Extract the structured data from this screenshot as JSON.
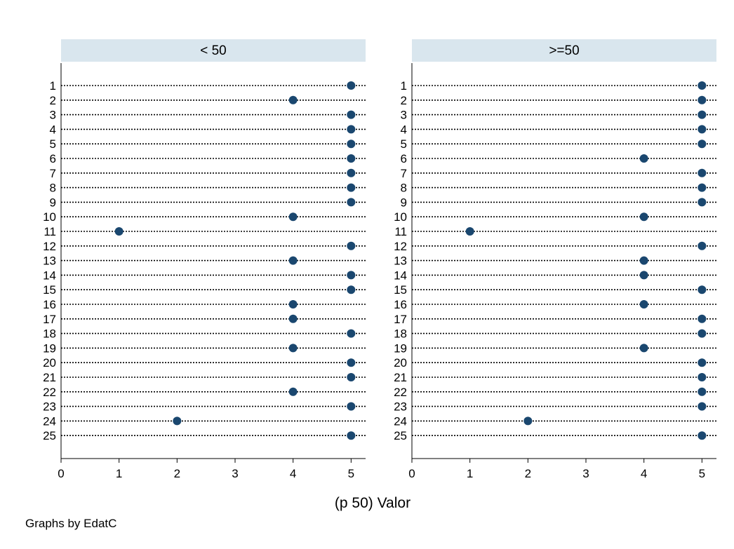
{
  "chart_data": {
    "type": "scatter",
    "subtype": "dot-plot",
    "xlabel": "(p 50) Valor",
    "note": "Graphs by EdatC",
    "xlim": [
      0,
      5.25
    ],
    "xticks": [
      0,
      1,
      2,
      3,
      4,
      5
    ],
    "grid": false,
    "marker_color": "#1a476f",
    "strip_color": "#d9e6ee",
    "categories": [
      "1",
      "2",
      "3",
      "4",
      "5",
      "6",
      "7",
      "8",
      "9",
      "10",
      "11",
      "12",
      "13",
      "14",
      "15",
      "16",
      "17",
      "18",
      "19",
      "20",
      "21",
      "22",
      "23",
      "24",
      "25"
    ],
    "panels": [
      {
        "title": "< 50",
        "values": [
          5,
          4,
          5,
          5,
          5,
          5,
          5,
          5,
          5,
          4,
          1,
          5,
          4,
          5,
          5,
          4,
          4,
          5,
          4,
          5,
          5,
          4,
          5,
          2,
          5
        ]
      },
      {
        "title": ">=50",
        "values": [
          5,
          5,
          5,
          5,
          5,
          4,
          5,
          5,
          5,
          4,
          1,
          5,
          4,
          4,
          5,
          4,
          5,
          5,
          4,
          5,
          5,
          5,
          5,
          2,
          5
        ]
      }
    ]
  }
}
